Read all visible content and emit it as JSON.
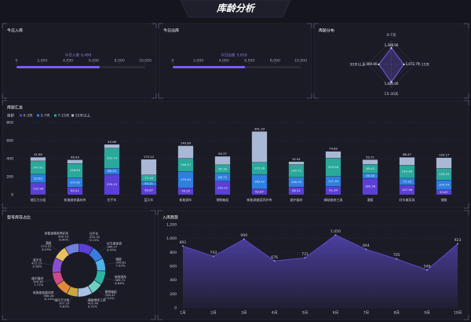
{
  "title": "库龄分析",
  "chart_data": [
    {
      "type": "progress",
      "title": "今日入库",
      "label": "今日入库",
      "value": 6468,
      "value_label": "6,468",
      "color": "#7b5cf0",
      "xlim": [
        0,
        10000
      ],
      "xticks": [
        0,
        {
          "value": 2000,
          "label": "2,000"
        },
        {
          "value": 4000,
          "label": "4,000"
        },
        {
          "value": 6000,
          "label": "6,000"
        },
        {
          "value": 8000,
          "label": "8,000"
        },
        {
          "value": 10000,
          "label": "10,000"
        }
      ]
    },
    {
      "type": "progress",
      "title": "今日出库",
      "label": "今日出库",
      "value": 5658,
      "value_label": "5,658",
      "color": "#7b5cf0",
      "xlim": [
        0,
        10000
      ],
      "xticks": [
        0,
        {
          "value": 2000,
          "label": "2,000"
        },
        {
          "value": 4000,
          "label": "4,000"
        },
        {
          "value": 6000,
          "label": "6,000"
        },
        {
          "value": 8000,
          "label": "8,000"
        },
        {
          "value": 10000,
          "label": "10,000"
        }
      ]
    },
    {
      "type": "radar",
      "title": "库龄分布",
      "indicators": [
        "0-7天",
        "7-15天",
        "15-30天",
        "30天以上"
      ],
      "values": [
        1388,
        1072.75,
        1480,
        1069
      ],
      "value_labels": [
        "1,388.00",
        "1,072.75",
        "1,480.00",
        "1,069.00"
      ],
      "rlim": [
        0,
        2000
      ],
      "color": "#7b5cf0"
    },
    {
      "type": "stacked_bar",
      "title": "库龄汇总",
      "legend_title": "库龄",
      "categories": [
        "储压方分组",
        "新美维修器材库",
        "拉手车",
        "蓝天车",
        "新能源车",
        "储物箱组",
        "新能源美容养护库",
        "维护器材",
        "辅助维修工具",
        "潜艇",
        "好车美家具",
        "储能"
      ],
      "series": [
        {
          "name": "0-3天",
          "color": "#5b3fd6",
          "values": [
            132.96,
            83.41,
            226.15,
            96.87,
            76.35,
            149.52,
            63.87,
            86.51,
            91.34,
            180.36,
            107.98,
            53.67
          ]
        },
        {
          "name": "3-7天",
          "color": "#2f7fe0",
          "values": [
            93.83,
            104.92,
            66.25,
            50.21,
            179.62,
            86.73,
            160.42,
            106.39,
            111.34,
            56.28,
            75.19,
            109.54
          ]
        },
        {
          "name": "7-15天",
          "color": "#2aa89a",
          "values": [
            147.91,
            158.64,
            222.73,
            72.14,
            146.57,
            95.18,
            135.26,
            140.72,
            203.56,
            98.45,
            143.68,
            128.33
          ]
        },
        {
          "name": "15天以上",
          "color": "#a9b8d4",
          "values": [
            41.65,
            40.43,
            43.06,
            173.12,
            140.69,
            94.37,
            341.33,
            32.91,
            74.83,
            53.71,
            88.47,
            120.17
          ]
        }
      ],
      "ylim": [
        0,
        800
      ],
      "yticks": [
        0,
        200,
        400,
        600,
        800
      ],
      "grid": true
    },
    {
      "type": "pie",
      "title": "型号库存占比",
      "categories": [
        "拉手车",
        "好车美家具",
        "储能",
        "新能源车",
        "储物箱组",
        "辅助维修工具",
        "储压方分组",
        "新美维修器材库",
        "维护器材",
        "蓝天车",
        "潜艇",
        "新能源美容养护库"
      ],
      "values": [
        410.42,
        380.27,
        356.81,
        389.72,
        338.41,
        405.46,
        307.33,
        366.28,
        349.62,
        422.13,
        373.07,
        400.53
      ],
      "percent_labels": [
        "9.12%",
        "8.45%",
        "7.93%",
        "8.66%",
        "7.52%",
        "9.01%",
        "6.83%",
        "8.14%",
        "7.77%",
        "9.38%",
        "8.29%",
        "8.90%"
      ],
      "colors": [
        "#5b3fd6",
        "#3a7be0",
        "#4fb3e8",
        "#2bb3a3",
        "#6fd0c0",
        "#a8c3e8",
        "#c9a640",
        "#e08a3a",
        "#d04a8a",
        "#8a4fd0",
        "#e8c060",
        "#7080e0"
      ]
    },
    {
      "type": "area",
      "title": "入库趋势",
      "categories": [
        "1月",
        "2月",
        "3月",
        "4月",
        "5月",
        "6月",
        "7月",
        "8月",
        "9月",
        "10月"
      ],
      "values": [
        891,
        743,
        990,
        676,
        721,
        1050,
        844,
        705,
        546,
        923
      ],
      "value_labels": [
        "891",
        "743",
        "990",
        "676",
        "721",
        "1,050",
        "844",
        "705",
        "546",
        "923"
      ],
      "color": "#5b4bc8",
      "ylim": [
        0,
        1200
      ],
      "yticks": [
        0,
        200,
        400,
        600,
        800,
        {
          "value": 1000,
          "label": "1,000"
        },
        {
          "value": 1200,
          "label": "1,200"
        }
      ],
      "grid": true
    }
  ]
}
